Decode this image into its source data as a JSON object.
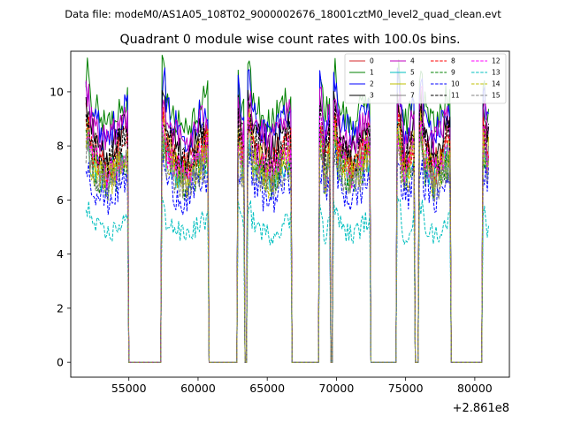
{
  "chart_data": {
    "type": "line",
    "suptitle": "Data file: modeM0/AS1A05_108T02_9000002676_18001cztM0_level2_quad_clean.evt",
    "title": "Quadrant 0 module wise count rates with 100.0s bins.",
    "xlabel": "",
    "ylabel": "",
    "x_offset_label": "+2.861e8",
    "xlim": [
      50800,
      82500
    ],
    "ylim": [
      -0.55,
      11.5
    ],
    "xticks": [
      55000,
      60000,
      65000,
      70000,
      75000,
      80000
    ],
    "xtick_labels": [
      "55000",
      "60000",
      "65000",
      "70000",
      "75000",
      "80000"
    ],
    "yticks": [
      0,
      2,
      4,
      6,
      8,
      10
    ],
    "ytick_labels": [
      "0",
      "2",
      "4",
      "6",
      "8",
      "10"
    ],
    "legend_position": "top-right",
    "bin_s": 100,
    "x_start": 51900,
    "x_end": 81000,
    "active_segments": [
      [
        51900,
        54900
      ],
      [
        57400,
        60700
      ],
      [
        62900,
        63300
      ],
      [
        63600,
        66700
      ],
      [
        68800,
        69500
      ],
      [
        69800,
        72400
      ],
      [
        74400,
        75600
      ],
      [
        76000,
        78200
      ],
      [
        80600,
        81000
      ]
    ],
    "series": [
      {
        "name": "0",
        "mean": 7.8,
        "color": "#d62728",
        "dash": "solid"
      },
      {
        "name": "1",
        "mean": 9.3,
        "color": "#008000",
        "dash": "solid"
      },
      {
        "name": "2",
        "mean": 8.9,
        "color": "#0000ff",
        "dash": "solid"
      },
      {
        "name": "3",
        "mean": 8.2,
        "color": "#000000",
        "dash": "solid"
      },
      {
        "name": "4",
        "mean": 8.6,
        "color": "#bf00bf",
        "dash": "solid"
      },
      {
        "name": "5",
        "mean": 7.2,
        "color": "#00bfbf",
        "dash": "solid"
      },
      {
        "name": "6",
        "mean": 7.5,
        "color": "#bfbf00",
        "dash": "solid"
      },
      {
        "name": "7",
        "mean": 7.3,
        "color": "#7f7f7f",
        "dash": "solid"
      },
      {
        "name": "8",
        "mean": 7.6,
        "color": "#ff0000",
        "dash": "dashed"
      },
      {
        "name": "9",
        "mean": 7.0,
        "color": "#008000",
        "dash": "dashed"
      },
      {
        "name": "10",
        "mean": 6.4,
        "color": "#0000ff",
        "dash": "dashed"
      },
      {
        "name": "11",
        "mean": 7.9,
        "color": "#000000",
        "dash": "dashed"
      },
      {
        "name": "12",
        "mean": 7.4,
        "color": "#ff00ff",
        "dash": "dashed"
      },
      {
        "name": "13",
        "mean": 5.0,
        "color": "#00bfbf",
        "dash": "dashed"
      },
      {
        "name": "14",
        "mean": 7.1,
        "color": "#bfbf00",
        "dash": "dashed"
      },
      {
        "name": "15",
        "mean": 6.9,
        "color": "#808080",
        "dash": "dashed"
      }
    ]
  }
}
